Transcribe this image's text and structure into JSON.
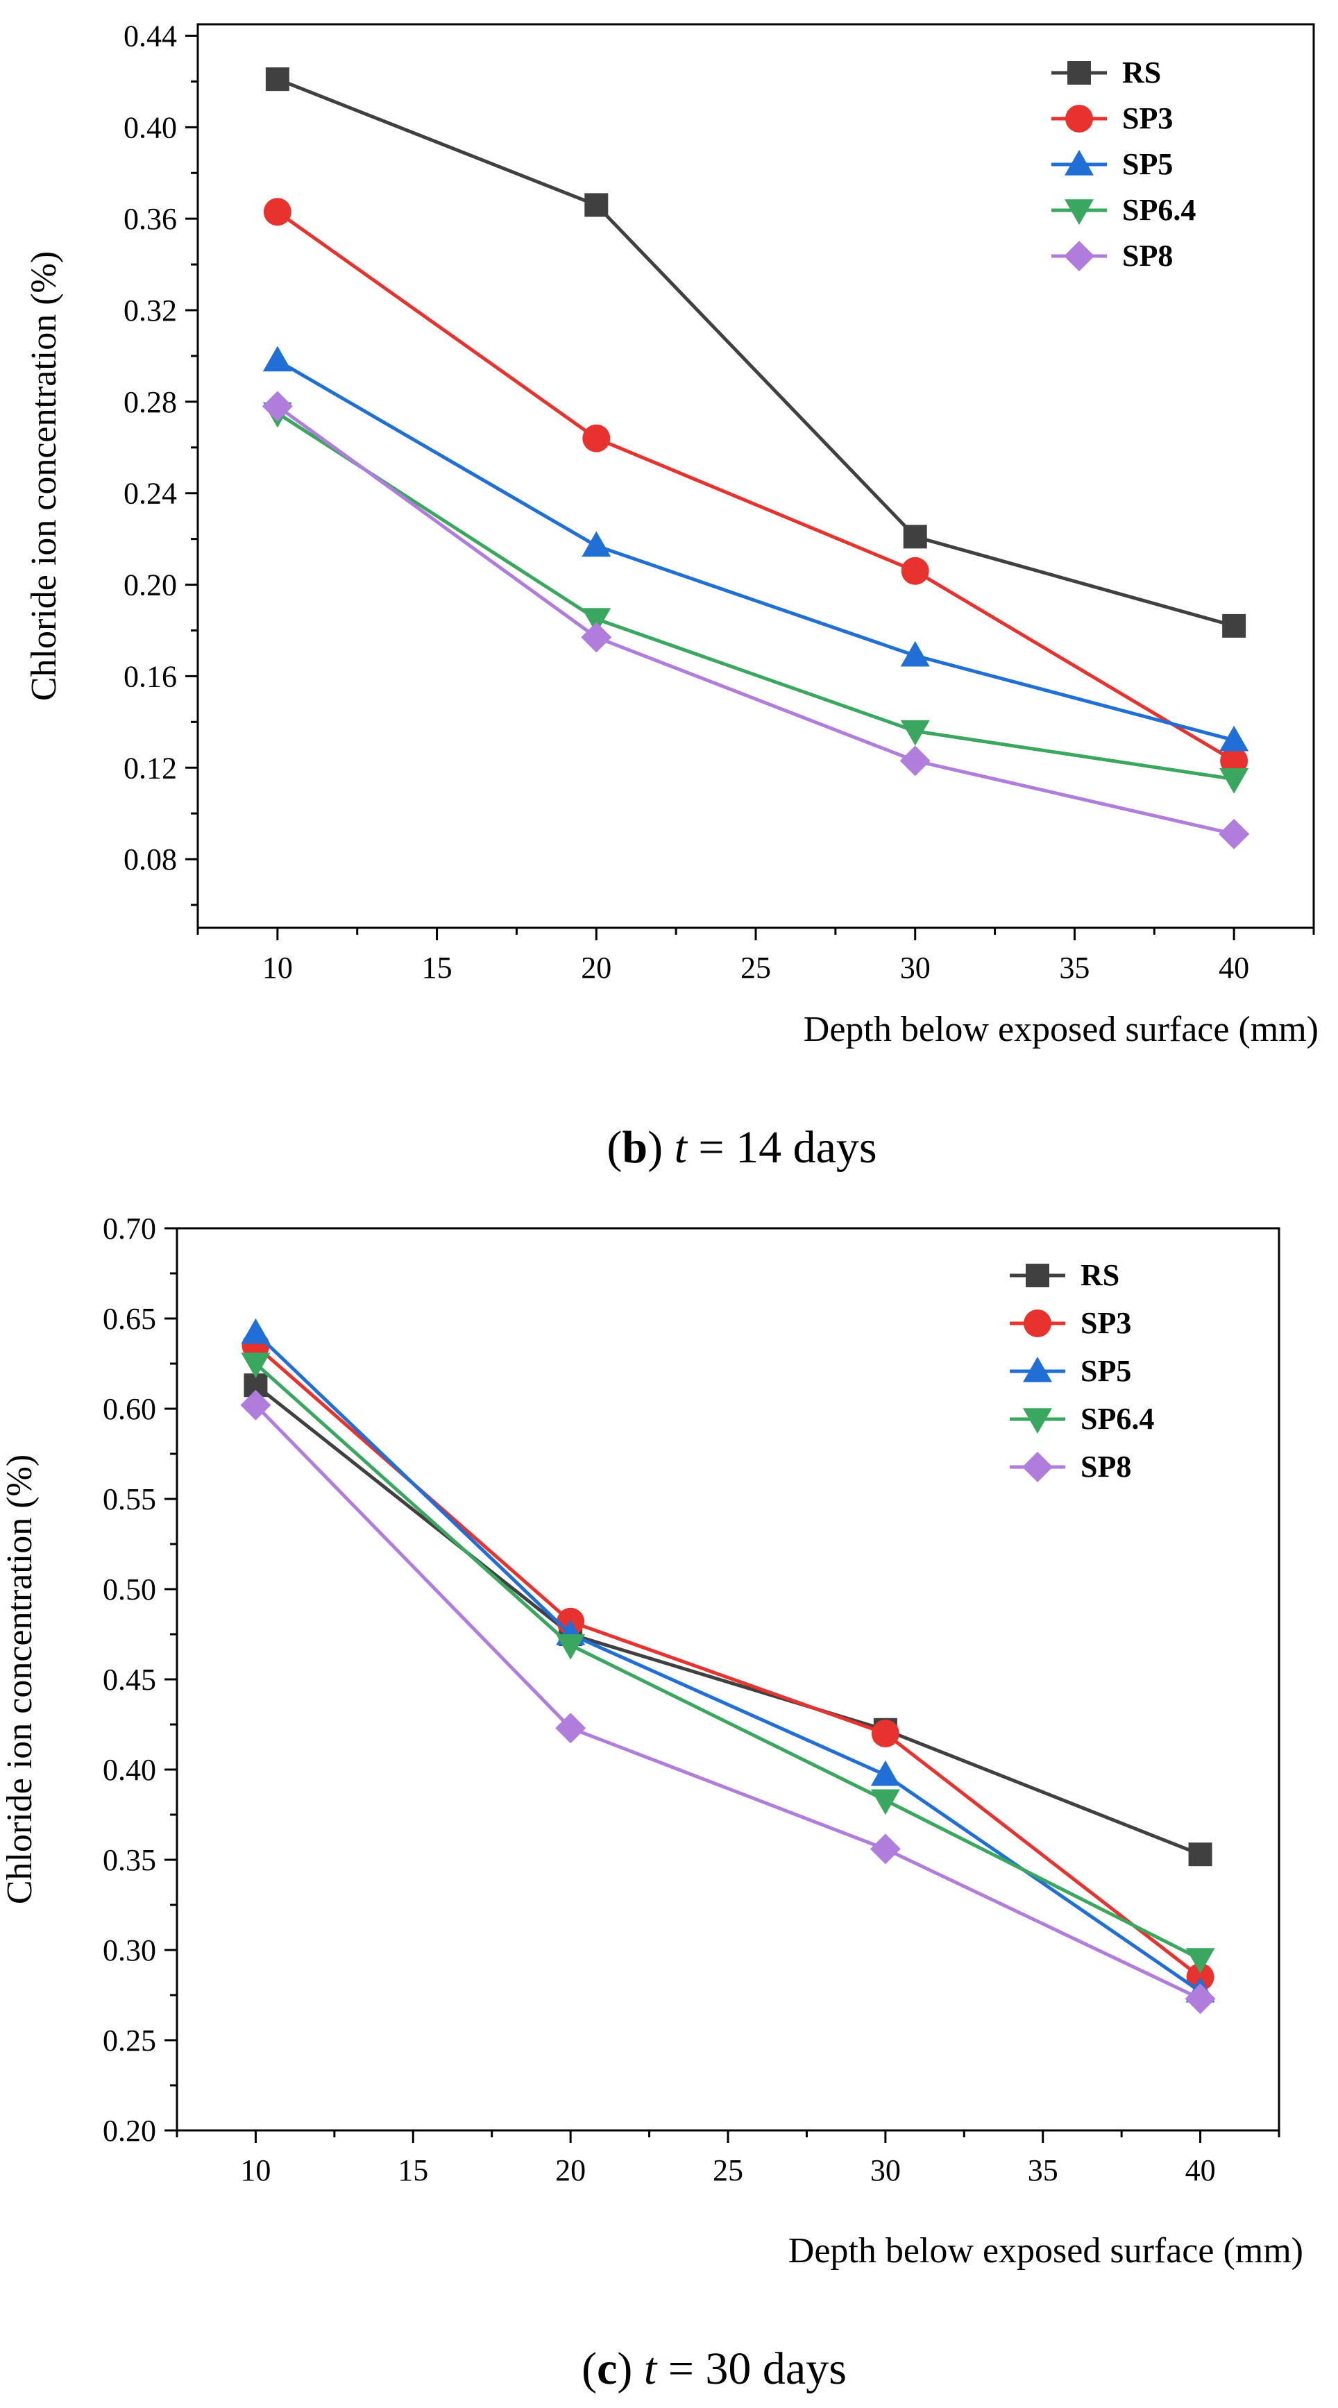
{
  "colors": {
    "RS": "#404040",
    "SP3": "#e8322e",
    "SP5": "#1f6fd6",
    "SP6.4": "#3aa75f",
    "SP8": "#b07ddc",
    "axis": "#000000"
  },
  "chart_data": [
    {
      "type": "line",
      "panel_label": "b",
      "caption_rest": "14 days",
      "caption_var": "t",
      "caption_eq": "=",
      "xlabel": "Depth below exposed surface (mm)",
      "ylabel": "Chloride ion concentration (%)",
      "x": [
        10,
        20,
        30,
        40
      ],
      "xlim": [
        7.5,
        42.5
      ],
      "ylim": [
        0.05,
        0.445
      ],
      "xticks": [
        "10",
        "15",
        "20",
        "25",
        "30",
        "35",
        "40"
      ],
      "yticks": [
        "0.08",
        "0.12",
        "0.16",
        "0.20",
        "0.24",
        "0.28",
        "0.32",
        "0.36",
        "0.40",
        "0.44"
      ],
      "legend_position": "top-right",
      "series": [
        {
          "name": "RS",
          "marker": "square",
          "values": [
            0.421,
            0.366,
            0.221,
            0.182
          ]
        },
        {
          "name": "SP3",
          "marker": "circle",
          "values": [
            0.363,
            0.264,
            0.206,
            0.123
          ]
        },
        {
          "name": "SP5",
          "marker": "triangle-up",
          "values": [
            0.298,
            0.217,
            0.169,
            0.132
          ]
        },
        {
          "name": "SP6.4",
          "marker": "triangle-down",
          "values": [
            0.275,
            0.185,
            0.136,
            0.115
          ]
        },
        {
          "name": "SP8",
          "marker": "diamond",
          "values": [
            0.278,
            0.177,
            0.123,
            0.091
          ]
        }
      ]
    },
    {
      "type": "line",
      "panel_label": "c",
      "caption_rest": "30 days",
      "caption_var": "t",
      "caption_eq": "=",
      "xlabel": "Depth below exposed surface (mm)",
      "ylabel": "Chloride ion concentration (%)",
      "x": [
        10,
        20,
        30,
        40
      ],
      "xlim": [
        7.5,
        42.5
      ],
      "ylim": [
        0.2,
        0.7
      ],
      "xticks": [
        "10",
        "15",
        "20",
        "25",
        "30",
        "35",
        "40"
      ],
      "yticks": [
        "0.20",
        "0.25",
        "0.30",
        "0.35",
        "0.40",
        "0.45",
        "0.50",
        "0.55",
        "0.60",
        "0.65",
        "0.70"
      ],
      "legend_position": "top-right",
      "series": [
        {
          "name": "RS",
          "marker": "square",
          "values": [
            0.613,
            0.475,
            0.422,
            0.353
          ]
        },
        {
          "name": "SP3",
          "marker": "circle",
          "values": [
            0.635,
            0.482,
            0.42,
            0.285
          ]
        },
        {
          "name": "SP5",
          "marker": "triangle-up",
          "values": [
            0.642,
            0.475,
            0.397,
            0.277
          ]
        },
        {
          "name": "SP6.4",
          "marker": "triangle-down",
          "values": [
            0.625,
            0.469,
            0.383,
            0.295
          ]
        },
        {
          "name": "SP8",
          "marker": "diamond",
          "values": [
            0.602,
            0.423,
            0.356,
            0.273
          ]
        }
      ]
    }
  ]
}
